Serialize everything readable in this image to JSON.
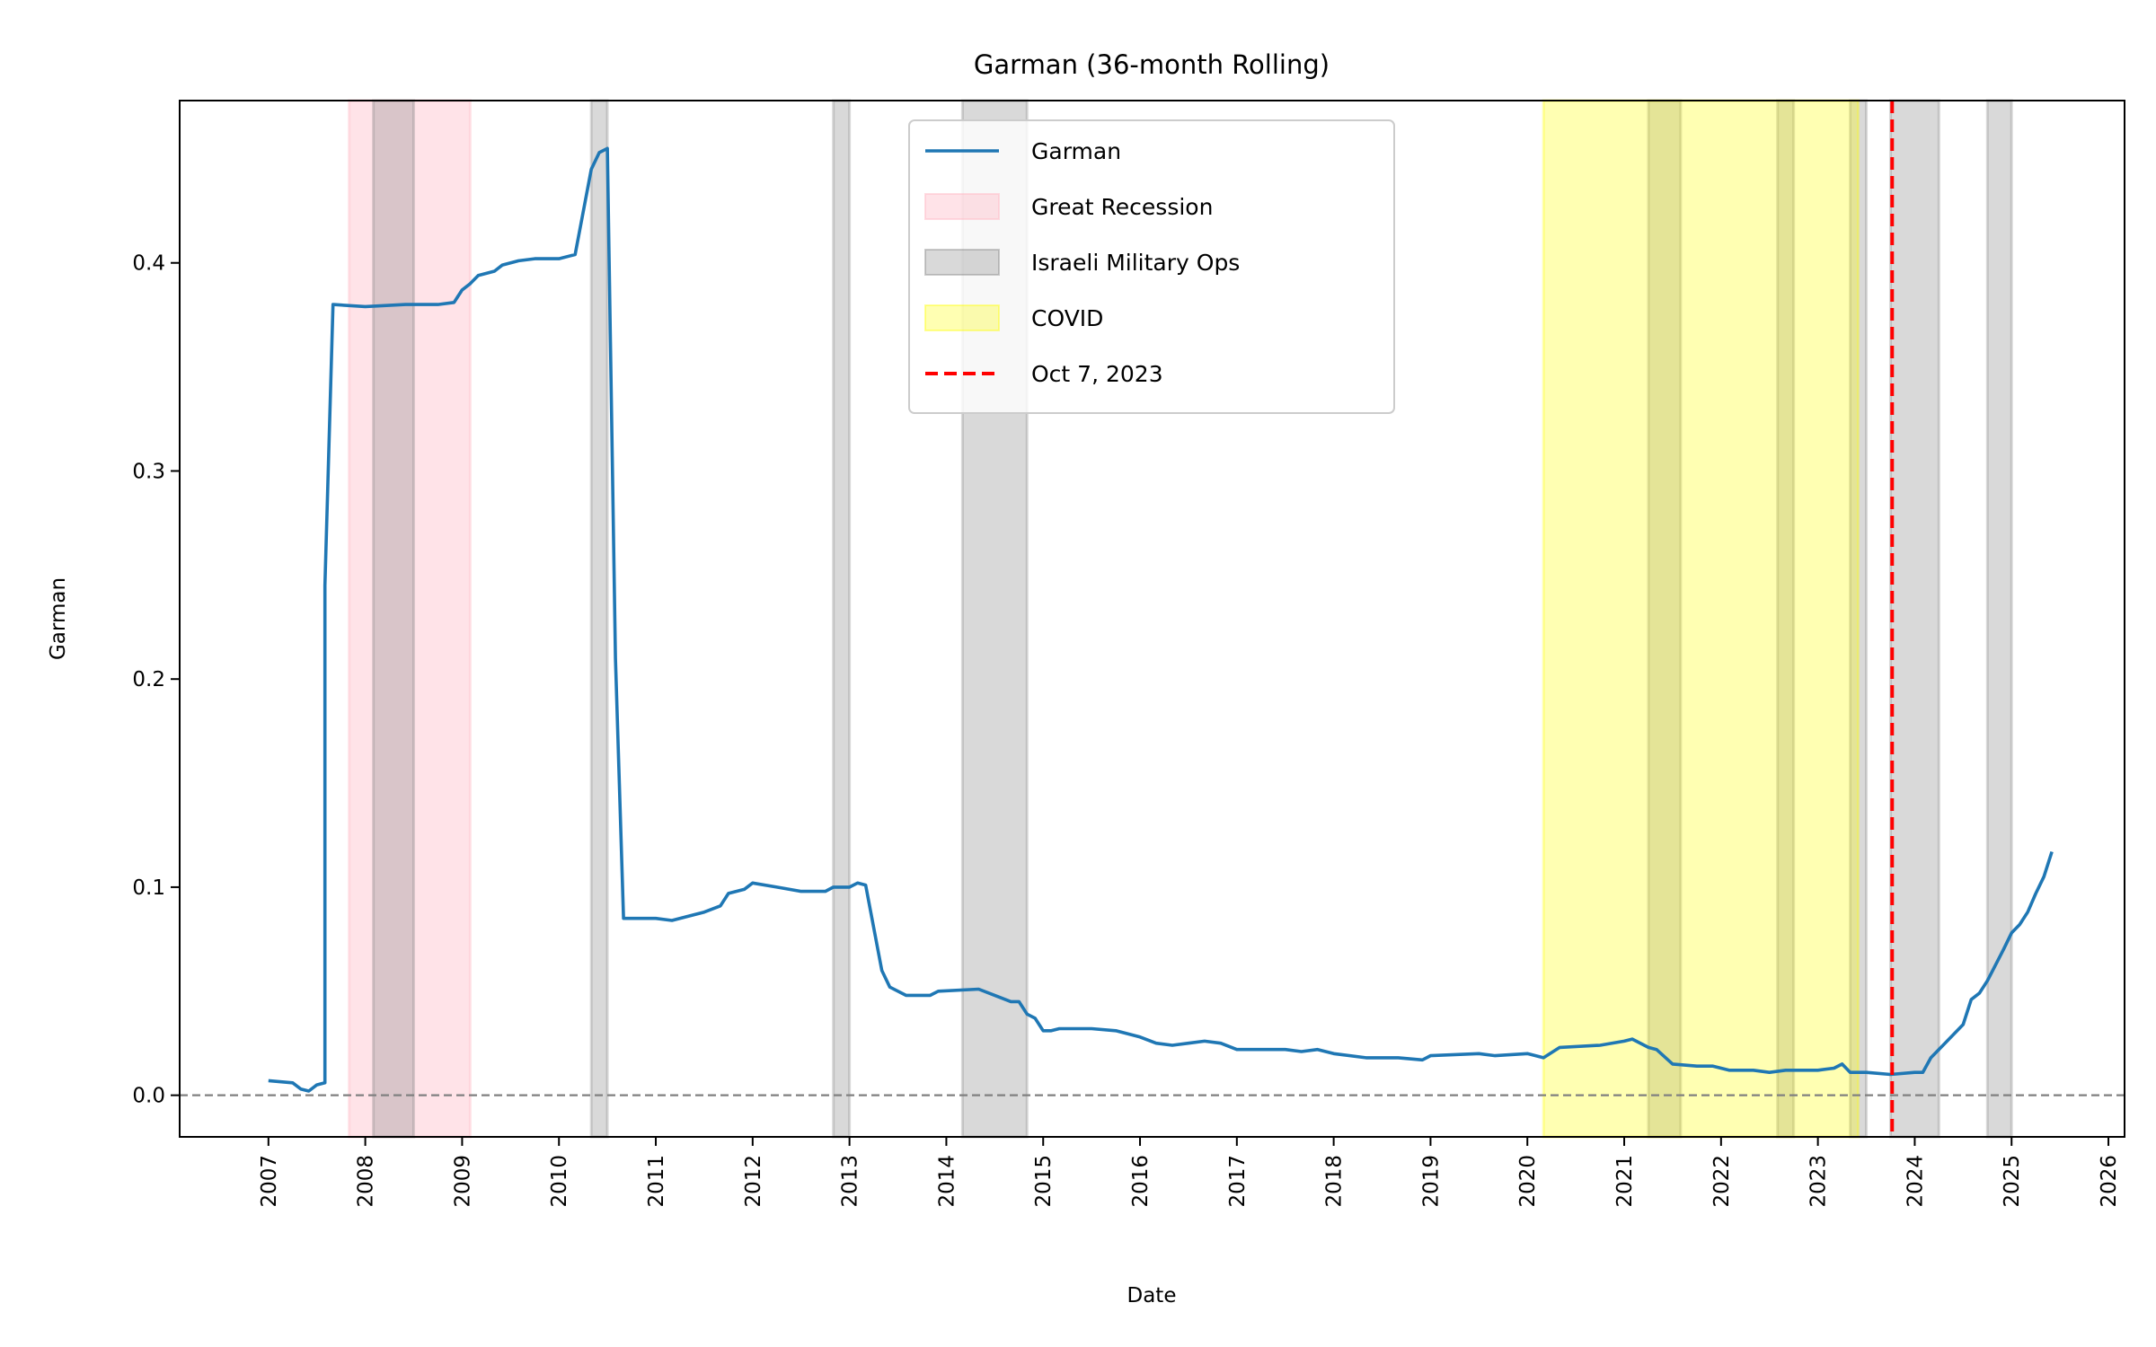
{
  "chart_data": {
    "type": "line",
    "title": "Garman (36-month Rolling)",
    "xlabel": "Date",
    "ylabel": "Garman",
    "xlim": [
      "2006-02",
      "2026-03"
    ],
    "ylim": [
      -0.02,
      0.478
    ],
    "grid": false,
    "legend_position": "top-center",
    "x_ticks": [
      "2007",
      "2008",
      "2009",
      "2010",
      "2011",
      "2012",
      "2013",
      "2014",
      "2015",
      "2016",
      "2017",
      "2018",
      "2019",
      "2020",
      "2021",
      "2022",
      "2023",
      "2024",
      "2025",
      "2026"
    ],
    "y_ticks": [
      "0.0",
      "0.1",
      "0.2",
      "0.3",
      "0.4"
    ],
    "reference_line": {
      "y": 0,
      "color": "#808080",
      "style": "dashed"
    },
    "series": [
      {
        "name": "Garman",
        "color": "#1f77b4",
        "points": [
          [
            "2007-01",
            0.007
          ],
          [
            "2007-04",
            0.006
          ],
          [
            "2007-05",
            0.003
          ],
          [
            "2007-06",
            0.002
          ],
          [
            "2007-07",
            0.005
          ],
          [
            "2007-08",
            0.006
          ],
          [
            "2007-08",
            0.245
          ],
          [
            "2007-09",
            0.38
          ],
          [
            "2008-01",
            0.379
          ],
          [
            "2008-06",
            0.38
          ],
          [
            "2008-10",
            0.38
          ],
          [
            "2008-12",
            0.381
          ],
          [
            "2009-01",
            0.387
          ],
          [
            "2009-02",
            0.39
          ],
          [
            "2009-03",
            0.394
          ],
          [
            "2009-05",
            0.396
          ],
          [
            "2009-06",
            0.399
          ],
          [
            "2009-08",
            0.401
          ],
          [
            "2009-10",
            0.402
          ],
          [
            "2010-01",
            0.402
          ],
          [
            "2010-03",
            0.404
          ],
          [
            "2010-05",
            0.445
          ],
          [
            "2010-06",
            0.453
          ],
          [
            "2010-07",
            0.455
          ],
          [
            "2010-08",
            0.21
          ],
          [
            "2010-09",
            0.085
          ],
          [
            "2011-01",
            0.085
          ],
          [
            "2011-03",
            0.084
          ],
          [
            "2011-07",
            0.088
          ],
          [
            "2011-09",
            0.091
          ],
          [
            "2011-10",
            0.097
          ],
          [
            "2011-12",
            0.099
          ],
          [
            "2012-01",
            0.102
          ],
          [
            "2012-04",
            0.1
          ],
          [
            "2012-07",
            0.098
          ],
          [
            "2012-10",
            0.098
          ],
          [
            "2012-11",
            0.1
          ],
          [
            "2013-01",
            0.1
          ],
          [
            "2013-02",
            0.102
          ],
          [
            "2013-03",
            0.101
          ],
          [
            "2013-05",
            0.06
          ],
          [
            "2013-06",
            0.052
          ],
          [
            "2013-08",
            0.048
          ],
          [
            "2013-11",
            0.048
          ],
          [
            "2013-12",
            0.05
          ],
          [
            "2014-05",
            0.051
          ],
          [
            "2014-07",
            0.048
          ],
          [
            "2014-09",
            0.045
          ],
          [
            "2014-10",
            0.045
          ],
          [
            "2014-11",
            0.039
          ],
          [
            "2014-12",
            0.037
          ],
          [
            "2015-01",
            0.031
          ],
          [
            "2015-02",
            0.031
          ],
          [
            "2015-03",
            0.032
          ],
          [
            "2015-07",
            0.032
          ],
          [
            "2015-10",
            0.031
          ],
          [
            "2016-01",
            0.028
          ],
          [
            "2016-03",
            0.025
          ],
          [
            "2016-05",
            0.024
          ],
          [
            "2016-07",
            0.025
          ],
          [
            "2016-09",
            0.026
          ],
          [
            "2016-11",
            0.025
          ],
          [
            "2017-01",
            0.022
          ],
          [
            "2017-07",
            0.022
          ],
          [
            "2017-09",
            0.021
          ],
          [
            "2017-11",
            0.022
          ],
          [
            "2018-01",
            0.02
          ],
          [
            "2018-05",
            0.018
          ],
          [
            "2018-09",
            0.018
          ],
          [
            "2018-12",
            0.017
          ],
          [
            "2019-01",
            0.019
          ],
          [
            "2019-07",
            0.02
          ],
          [
            "2019-09",
            0.019
          ],
          [
            "2020-01",
            0.02
          ],
          [
            "2020-03",
            0.018
          ],
          [
            "2020-05",
            0.023
          ],
          [
            "2020-10",
            0.024
          ],
          [
            "2021-01",
            0.026
          ],
          [
            "2021-02",
            0.027
          ],
          [
            "2021-04",
            0.023
          ],
          [
            "2021-05",
            0.022
          ],
          [
            "2021-07",
            0.015
          ],
          [
            "2021-10",
            0.014
          ],
          [
            "2021-12",
            0.014
          ],
          [
            "2022-02",
            0.012
          ],
          [
            "2022-05",
            0.012
          ],
          [
            "2022-07",
            0.011
          ],
          [
            "2022-09",
            0.012
          ],
          [
            "2023-01",
            0.012
          ],
          [
            "2023-03",
            0.013
          ],
          [
            "2023-04",
            0.015
          ],
          [
            "2023-05",
            0.011
          ],
          [
            "2023-07",
            0.011
          ],
          [
            "2023-10",
            0.01
          ],
          [
            "2024-01",
            0.011
          ],
          [
            "2024-02",
            0.011
          ],
          [
            "2024-03",
            0.018
          ],
          [
            "2024-05",
            0.026
          ],
          [
            "2024-07",
            0.034
          ],
          [
            "2024-08",
            0.046
          ],
          [
            "2024-09",
            0.049
          ],
          [
            "2024-10",
            0.055
          ],
          [
            "2024-12",
            0.07
          ],
          [
            "2025-01",
            0.078
          ],
          [
            "2025-02",
            0.082
          ],
          [
            "2025-03",
            0.088
          ],
          [
            "2025-04",
            0.097
          ],
          [
            "2025-05",
            0.105
          ],
          [
            "2025-06",
            0.117
          ]
        ]
      }
    ],
    "shaded_regions": [
      {
        "name": "Great Recession",
        "color": "#ffc0cb",
        "alpha": 0.45,
        "start": "2007-11",
        "end": "2009-02"
      },
      {
        "name": "Israeli Military Ops",
        "color": "#808080",
        "alpha": 0.3,
        "start": "2008-02",
        "end": "2008-07"
      },
      {
        "name": "Israeli Military Ops",
        "color": "#808080",
        "alpha": 0.3,
        "start": "2010-05",
        "end": "2010-07"
      },
      {
        "name": "Israeli Military Ops",
        "color": "#808080",
        "alpha": 0.3,
        "start": "2012-11",
        "end": "2013-01"
      },
      {
        "name": "Israeli Military Ops",
        "color": "#808080",
        "alpha": 0.3,
        "start": "2014-03",
        "end": "2014-11"
      },
      {
        "name": "Israeli Military Ops",
        "color": "#808080",
        "alpha": 0.3,
        "start": "2021-04",
        "end": "2021-08"
      },
      {
        "name": "Israeli Military Ops",
        "color": "#808080",
        "alpha": 0.3,
        "start": "2022-08",
        "end": "2022-10"
      },
      {
        "name": "Israeli Military Ops",
        "color": "#808080",
        "alpha": 0.3,
        "start": "2023-05",
        "end": "2023-07"
      },
      {
        "name": "Israeli Military Ops",
        "color": "#808080",
        "alpha": 0.3,
        "start": "2023-10",
        "end": "2024-04"
      },
      {
        "name": "Israeli Military Ops",
        "color": "#808080",
        "alpha": 0.3,
        "start": "2024-10",
        "end": "2025-01"
      },
      {
        "name": "COVID",
        "color": "#ffff00",
        "alpha": 0.3,
        "start": "2020-03",
        "end": "2023-06"
      }
    ],
    "vertical_line": {
      "name": "Oct 7, 2023",
      "date": "2023-10-07",
      "color": "#ff0000",
      "style": "dashed"
    },
    "legend": [
      {
        "label": "Garman",
        "kind": "line",
        "color": "#1f77b4"
      },
      {
        "label": "Great Recession",
        "kind": "patch",
        "color": "#ffc0cb",
        "alpha": 0.45
      },
      {
        "label": "Israeli Military Ops",
        "kind": "patch",
        "color": "#808080",
        "alpha": 0.3
      },
      {
        "label": "COVID",
        "kind": "patch",
        "color": "#ffff00",
        "alpha": 0.3
      },
      {
        "label": "Oct 7, 2023",
        "kind": "dashed",
        "color": "#ff0000"
      }
    ]
  }
}
